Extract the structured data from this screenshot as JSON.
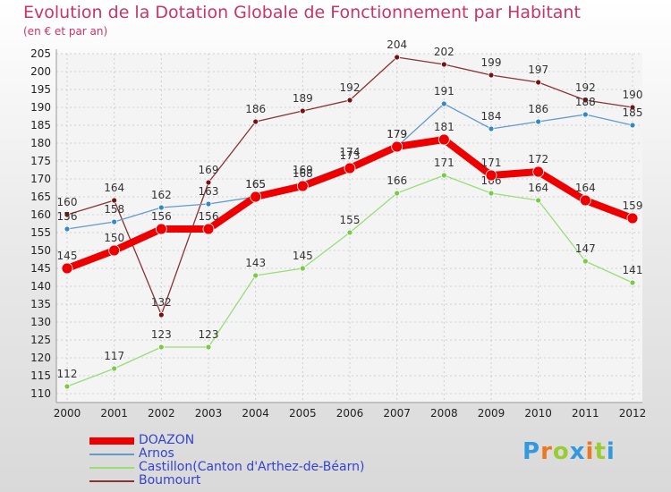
{
  "chart_data": {
    "type": "line",
    "title": "Evolution de la Dotation Globale de Fonctionnement par Habitant",
    "subtitle": "(en € et par an)",
    "xlabel": "",
    "ylabel": "",
    "categories": [
      "2000",
      "2001",
      "2002",
      "2003",
      "2004",
      "2005",
      "2006",
      "2007",
      "2008",
      "2009",
      "2010",
      "2011",
      "2012"
    ],
    "ylim": [
      110,
      205
    ],
    "yticks": [
      110,
      115,
      120,
      125,
      130,
      135,
      140,
      145,
      150,
      155,
      160,
      165,
      170,
      175,
      180,
      185,
      190,
      195,
      200,
      205
    ],
    "grid": true,
    "legend_position": "bottom-left",
    "series": [
      {
        "name": "DOAZON",
        "color": "#ee0000",
        "values": [
          145,
          150,
          156,
          156,
          165,
          168,
          173,
          179,
          181,
          171,
          172,
          164,
          159
        ]
      },
      {
        "name": "Arnos",
        "color": "#6699cc",
        "values": [
          156,
          158,
          162,
          163,
          165,
          169,
          174,
          179,
          191,
          184,
          186,
          188,
          185
        ]
      },
      {
        "name": "Castillon(Canton d'Arthez-de-Béarn)",
        "color": "#99dd77",
        "values": [
          112,
          117,
          123,
          123,
          143,
          145,
          155,
          166,
          171,
          166,
          164,
          147,
          141
        ]
      },
      {
        "name": "Boumourt",
        "color": "#883333",
        "values": [
          160,
          164,
          132,
          169,
          186,
          189,
          192,
          204,
          202,
          199,
          197,
          192,
          190
        ]
      }
    ]
  },
  "logo": {
    "text": "Proxiti"
  }
}
